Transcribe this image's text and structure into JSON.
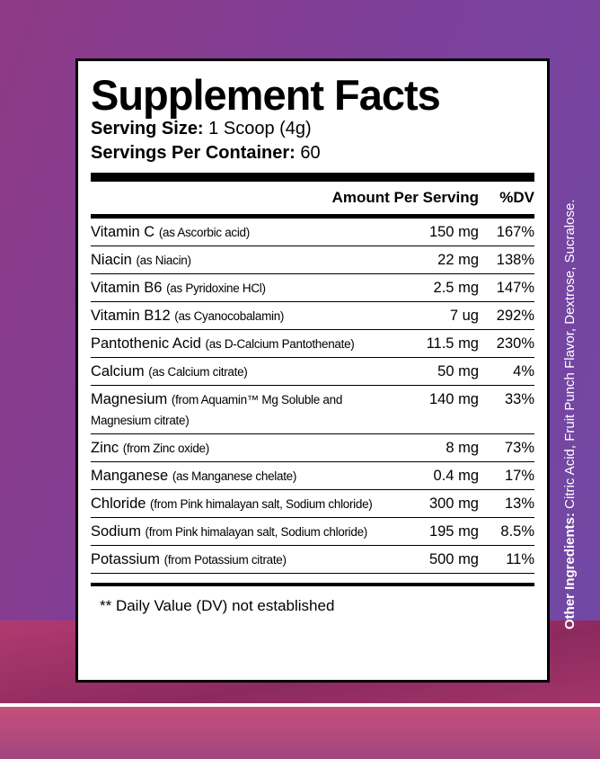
{
  "title": "Supplement Facts",
  "serving_size": {
    "label": "Serving Size:",
    "value": "1 Scoop (4g)"
  },
  "servings_per_container": {
    "label": "Servings Per Container:",
    "value": "60"
  },
  "columns": {
    "amount": "Amount Per Serving",
    "dv": "%DV"
  },
  "rows": [
    {
      "name": "Vitamin C",
      "source": "(as Ascorbic acid)",
      "amount": "150 mg",
      "dv": "167%"
    },
    {
      "name": "Niacin",
      "source": "(as Niacin)",
      "amount": "22 mg",
      "dv": "138%"
    },
    {
      "name": "Vitamin B6",
      "source": "(as Pyridoxine HCl)",
      "amount": "2.5 mg",
      "dv": "147%"
    },
    {
      "name": "Vitamin B12",
      "source": "(as Cyanocobalamin)",
      "amount": "7 ug",
      "dv": "292%"
    },
    {
      "name": "Pantothenic Acid",
      "source": "(as D-Calcium Pantothenate)",
      "amount": "11.5 mg",
      "dv": "230%"
    },
    {
      "name": "Calcium",
      "source": "(as Calcium citrate)",
      "amount": "50 mg",
      "dv": "4%"
    },
    {
      "name": "Magnesium",
      "source": "(from Aquamin™ Mg Soluble and Magnesium citrate)",
      "amount": "140 mg",
      "dv": "33%"
    },
    {
      "name": "Zinc",
      "source": "(from Zinc oxide)",
      "amount": "8 mg",
      "dv": "73%"
    },
    {
      "name": "Manganese",
      "source": "(as Manganese chelate)",
      "amount": "0.4 mg",
      "dv": "17%"
    },
    {
      "name": "Chloride",
      "source": "(from Pink himalayan salt, Sodium chloride)",
      "amount": "300 mg",
      "dv": "13%"
    },
    {
      "name": "Sodium",
      "source": "(from Pink himalayan salt, Sodium chloride)",
      "amount": "195 mg",
      "dv": "8.5%"
    },
    {
      "name": "Potassium",
      "source": "(from Potassium citrate)",
      "amount": "500 mg",
      "dv": "11%"
    }
  ],
  "footnote": "** Daily Value (DV) not established",
  "other_ingredients": {
    "label": "Other Ingredients:",
    "value": "Citric Acid, Fruit Punch Flavor, Dextrose, Sucralose."
  }
}
